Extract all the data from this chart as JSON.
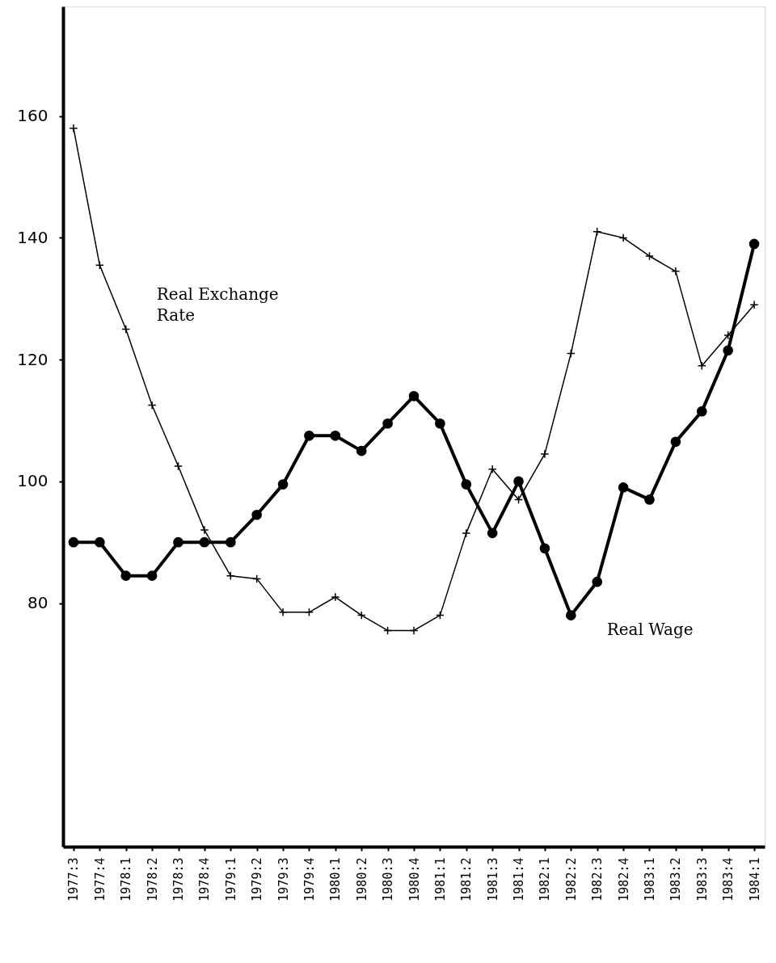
{
  "chart_data": {
    "type": "line",
    "categories": [
      "1977:3",
      "1977:4",
      "1978:1",
      "1978:2",
      "1978:3",
      "1978:4",
      "1979:1",
      "1979:2",
      "1979:3",
      "1979:4",
      "1980:1",
      "1980:2",
      "1980:3",
      "1980:4",
      "1981:1",
      "1981:2",
      "1981:3",
      "1981:4",
      "1982:1",
      "1982:2",
      "1982:3",
      "1982:4",
      "1983:1",
      "1983:2",
      "1983:3",
      "1983:4",
      "1984:1"
    ],
    "series": [
      {
        "name": "Real Exchange Rate",
        "color": "#000000",
        "marker": "cross",
        "values": [
          158,
          135.5,
          125,
          112.5,
          102.5,
          92,
          84.5,
          84,
          78.5,
          78.5,
          81,
          78,
          75.5,
          75.5,
          78,
          91.5,
          102,
          97,
          104.5,
          121,
          141,
          140,
          137,
          134.5,
          119,
          124,
          129
        ]
      },
      {
        "name": "Real Wage",
        "color": "#000000",
        "marker": "circle",
        "values": [
          90,
          90,
          84.5,
          84.5,
          90,
          90,
          90,
          94.5,
          99.5,
          107.5,
          107.5,
          105,
          109.5,
          114,
          109.5,
          99.5,
          91.5,
          100,
          89,
          78,
          83.5,
          99,
          97,
          106.5,
          111.5,
          121.5,
          139
        ]
      }
    ],
    "ylim": [
      40,
      178
    ],
    "yticks": [
      80,
      100,
      120,
      140,
      160
    ],
    "grid": false
  }
}
